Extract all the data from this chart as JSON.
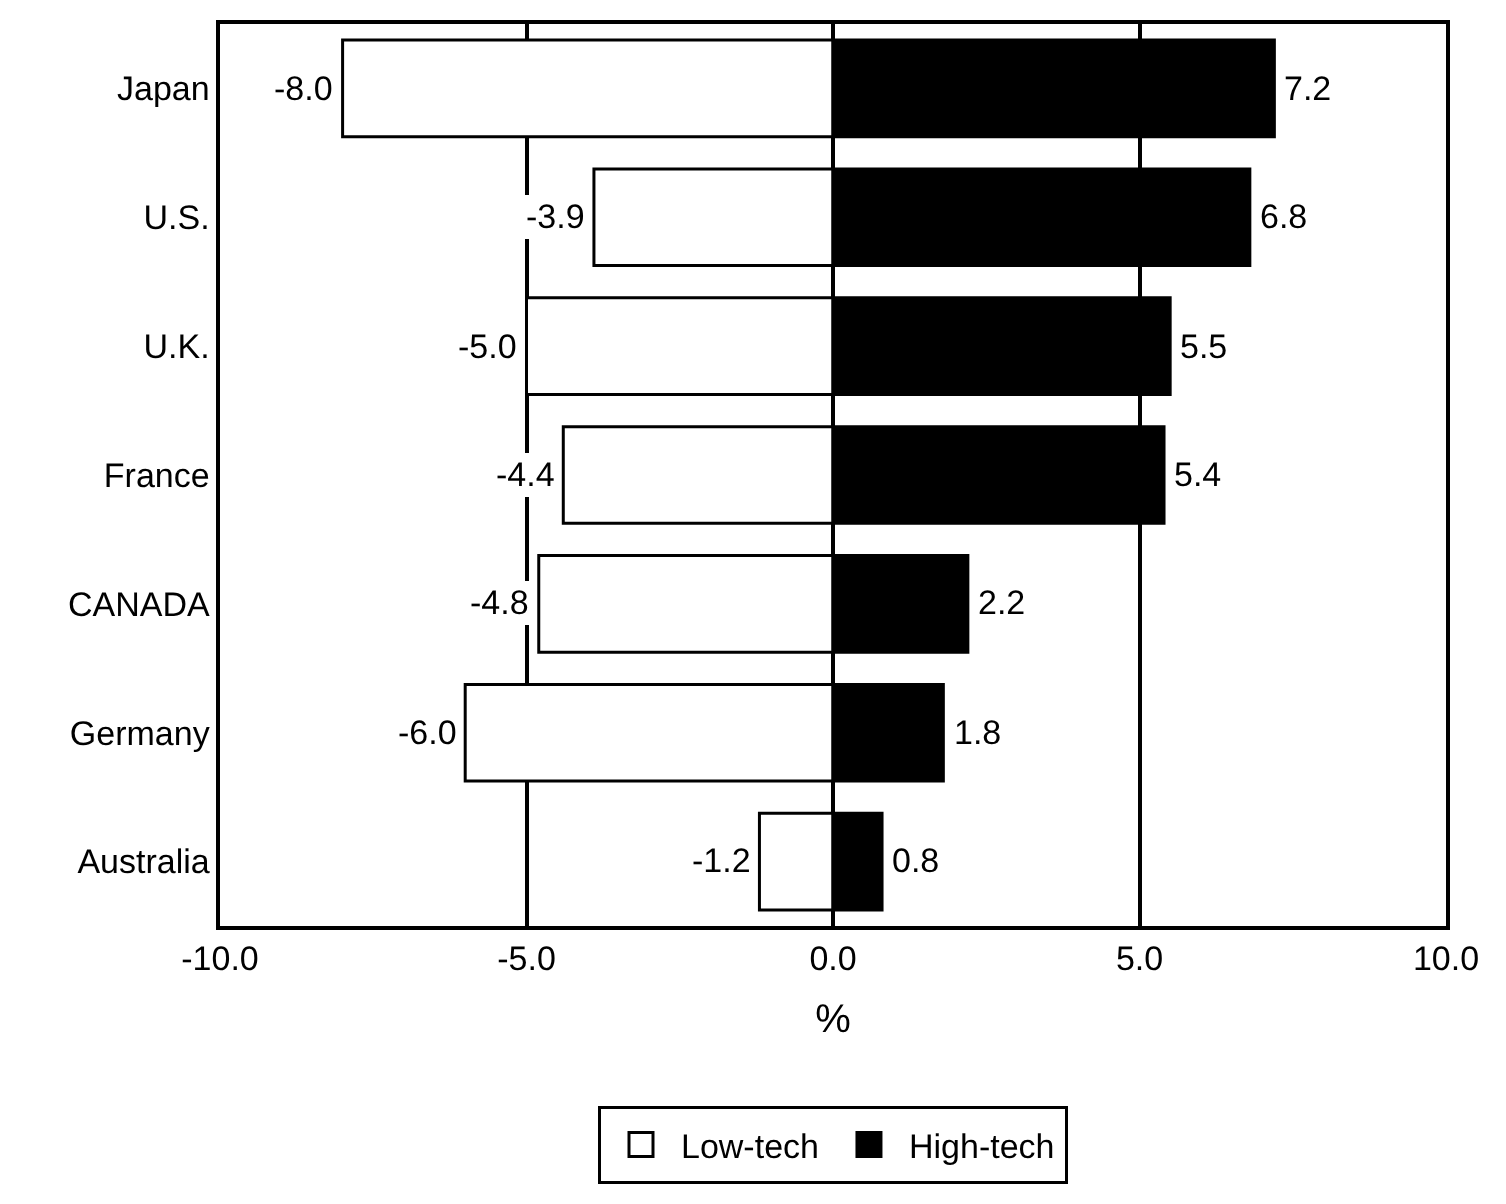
{
  "chart_data": {
    "type": "bar",
    "orientation": "horizontal",
    "xlabel": "%",
    "categories": [
      "Japan",
      "U.S.",
      "U.K.",
      "France",
      "CANADA",
      "Germany",
      "Australia"
    ],
    "series": [
      {
        "name": "Low-tech",
        "color": "#ffffff",
        "values": [
          -8.0,
          -3.9,
          -5.0,
          -4.4,
          -4.8,
          -6.0,
          -1.2
        ],
        "value_labels": [
          "-8.0",
          "-3.9",
          "-5.0",
          "-4.4",
          "-4.8",
          "-6.0",
          "-1.2"
        ]
      },
      {
        "name": "High-tech",
        "color": "#000000",
        "values": [
          7.2,
          6.8,
          5.5,
          5.4,
          2.2,
          1.8,
          0.8
        ],
        "value_labels": [
          "7.2",
          "6.8",
          "5.5",
          "5.4",
          "2.2",
          "1.8",
          "0.8"
        ]
      }
    ],
    "xlim": [
      -10,
      10
    ],
    "xticks": [
      {
        "value": -10,
        "label": "-10.0"
      },
      {
        "value": -5,
        "label": "-5.0"
      },
      {
        "value": 0,
        "label": "0.0"
      },
      {
        "value": 5,
        "label": "5.0"
      },
      {
        "value": 10,
        "label": "10.0"
      }
    ],
    "grid": "x",
    "stacked": true,
    "legend": "bottom"
  }
}
